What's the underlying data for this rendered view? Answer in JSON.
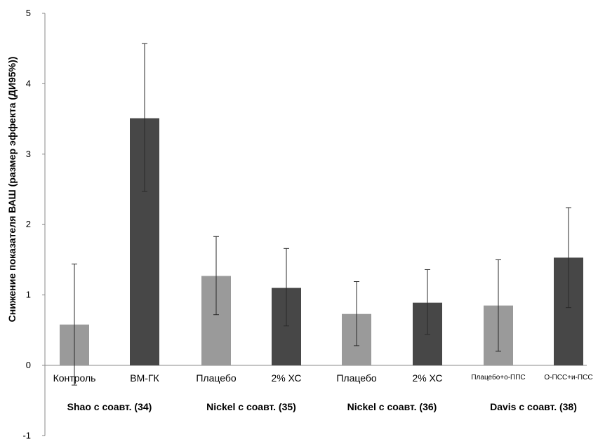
{
  "chart_data": {
    "type": "bar",
    "title": "",
    "xlabel": "",
    "ylabel": "Снижение показателя ВАШ (размер эффекта (ДИ95%))",
    "ylim": [
      -1,
      5
    ],
    "yticks": [
      -1,
      0,
      1,
      2,
      3,
      4,
      5
    ],
    "grid": false,
    "categories": [
      "Контроль",
      "ВМ-ГК",
      "Плацебо",
      "2% ХС",
      "Плацебо",
      "2% ХС",
      "Плацебо+о-ППС",
      "О-ПСС+и-ПСС"
    ],
    "values": [
      0.58,
      3.51,
      1.27,
      1.1,
      0.73,
      0.89,
      0.85,
      1.53
    ],
    "error_low": [
      -0.28,
      2.47,
      0.72,
      0.56,
      0.28,
      0.44,
      0.2,
      0.82
    ],
    "error_high": [
      1.44,
      4.57,
      1.83,
      1.66,
      1.19,
      1.36,
      1.5,
      2.24
    ],
    "bar_colors": [
      "#9a9a9a",
      "#474747",
      "#9a9a9a",
      "#474747",
      "#9a9a9a",
      "#474747",
      "#9a9a9a",
      "#474747"
    ],
    "groups": [
      {
        "label": "Shao с соавт. (34)",
        "categories": [
          0,
          1
        ]
      },
      {
        "label": "Nickel с соавт. (35)",
        "categories": [
          2,
          3
        ]
      },
      {
        "label": "Nickel с соавт. (36)",
        "categories": [
          4,
          5
        ]
      },
      {
        "label": "Davis с соавт. (38)",
        "categories": [
          6,
          7
        ]
      }
    ]
  }
}
